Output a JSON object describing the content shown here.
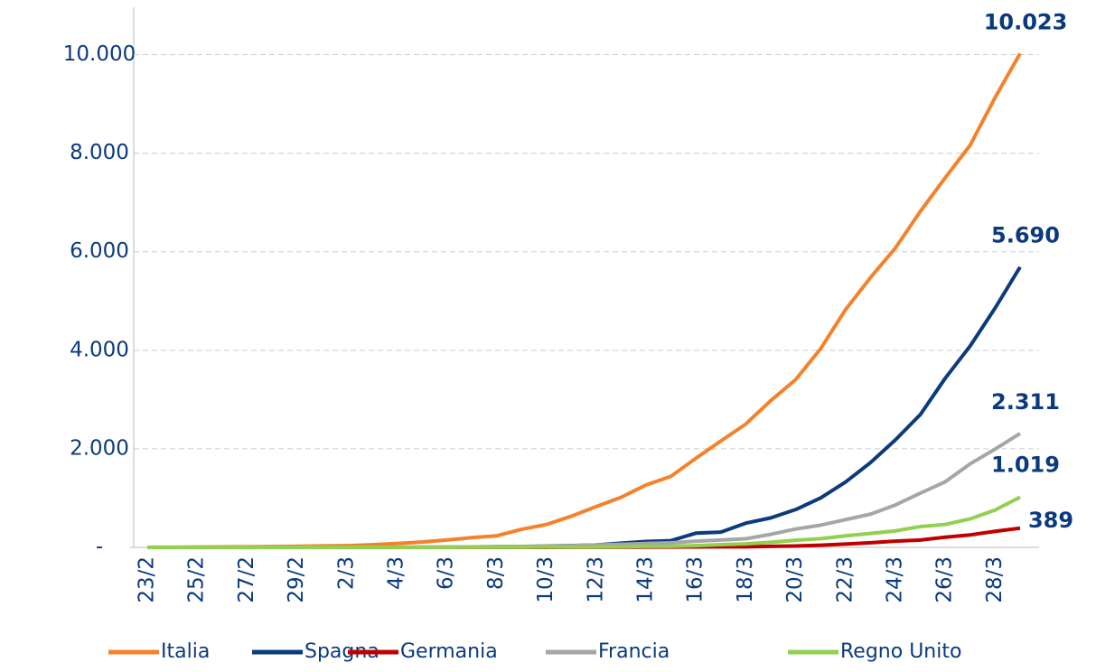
{
  "chart_data": {
    "type": "line",
    "categories": [
      "23/2",
      null,
      "25/2",
      null,
      "27/2",
      null,
      "29/2",
      null,
      "2/3",
      null,
      "4/3",
      null,
      "6/3",
      null,
      "8/3",
      null,
      "10/3",
      null,
      "12/3",
      null,
      "14/3",
      null,
      "16/3",
      null,
      "18/3",
      null,
      "20/3",
      null,
      "22/3",
      null,
      "24/3",
      null,
      "26/3",
      null,
      "28/3",
      null
    ],
    "series": [
      {
        "name": "Italia",
        "color": "#f5822a",
        "values": [
          2,
          3,
          7,
          10,
          12,
          17,
          21,
          29,
          34,
          52,
          79,
          107,
          148,
          197,
          233,
          366,
          463,
          631,
          827,
          1016,
          1266,
          1441,
          1809,
          2158,
          2503,
          2978,
          3405,
          4032,
          4825,
          5476,
          6077,
          6820,
          7503,
          8165,
          9134,
          10023
        ],
        "value_labels": [
          null,
          null,
          null,
          null,
          null,
          null,
          null,
          null,
          null,
          null,
          null,
          null,
          null,
          null,
          null,
          null,
          null,
          null,
          null,
          null,
          null,
          null,
          null,
          null,
          null,
          null,
          null,
          null,
          null,
          null,
          null,
          null,
          null,
          null,
          null,
          "10.023"
        ]
      },
      {
        "name": "Spagna",
        "color": "#0b3a7e",
        "values": [
          0,
          0,
          0,
          0,
          0,
          0,
          0,
          0,
          0,
          0,
          1,
          2,
          3,
          5,
          8,
          10,
          28,
          35,
          48,
          84,
          120,
          136,
          288,
          309,
          491,
          598,
          767,
          1002,
          1326,
          1720,
          2182,
          2696,
          3434,
          4089,
          4858,
          5690
        ],
        "value_labels": [
          null,
          null,
          null,
          null,
          null,
          null,
          null,
          null,
          null,
          null,
          null,
          null,
          null,
          null,
          null,
          null,
          null,
          null,
          null,
          null,
          null,
          null,
          null,
          null,
          null,
          null,
          null,
          null,
          null,
          null,
          null,
          null,
          null,
          null,
          null,
          "5.690"
        ]
      },
      {
        "name": "Germania",
        "color": "#c00000",
        "values": [
          0,
          0,
          0,
          0,
          0,
          0,
          0,
          0,
          0,
          0,
          0,
          0,
          0,
          0,
          0,
          0,
          0,
          2,
          2,
          3,
          6,
          8,
          9,
          12,
          12,
          20,
          28,
          44,
          67,
          94,
          126,
          149,
          206,
          253,
          325,
          389
        ],
        "value_labels": [
          null,
          null,
          null,
          null,
          null,
          null,
          null,
          null,
          null,
          null,
          null,
          null,
          null,
          null,
          null,
          null,
          null,
          null,
          null,
          null,
          null,
          null,
          null,
          null,
          null,
          null,
          null,
          null,
          null,
          null,
          null,
          null,
          null,
          null,
          null,
          "389"
        ]
      },
      {
        "name": "Francia",
        "color": "#a6a6a6",
        "values": [
          1,
          1,
          1,
          1,
          1,
          1,
          1,
          1,
          2,
          3,
          4,
          4,
          7,
          9,
          19,
          19,
          30,
          33,
          48,
          61,
          79,
          91,
          127,
          148,
          175,
          264,
          372,
          450,
          562,
          674,
          860,
          1100,
          1331,
          1696,
          1995,
          2311
        ],
        "value_labels": [
          null,
          null,
          null,
          null,
          null,
          null,
          null,
          null,
          null,
          null,
          null,
          null,
          null,
          null,
          null,
          null,
          null,
          null,
          null,
          null,
          null,
          null,
          null,
          null,
          null,
          null,
          null,
          null,
          null,
          null,
          null,
          null,
          null,
          null,
          null,
          "2.311"
        ]
      },
      {
        "name": "Regno Unito",
        "color": "#92d050",
        "values": [
          0,
          0,
          0,
          0,
          0,
          0,
          0,
          0,
          0,
          0,
          0,
          0,
          1,
          2,
          2,
          3,
          6,
          8,
          8,
          10,
          21,
          21,
          35,
          56,
          71,
          104,
          144,
          177,
          233,
          281,
          335,
          422,
          465,
          578,
          759,
          1019
        ],
        "value_labels": [
          null,
          null,
          null,
          null,
          null,
          null,
          null,
          null,
          null,
          null,
          null,
          null,
          null,
          null,
          null,
          null,
          null,
          null,
          null,
          null,
          null,
          null,
          null,
          null,
          null,
          null,
          null,
          null,
          null,
          null,
          null,
          null,
          null,
          null,
          null,
          "1.019"
        ]
      }
    ],
    "ylim": [
      0,
      11000
    ],
    "yticks": [
      {
        "value": 0,
        "label": "-"
      },
      {
        "value": 2000,
        "label": "2.000"
      },
      {
        "value": 4000,
        "label": "4.000"
      },
      {
        "value": 6000,
        "label": "6.000"
      },
      {
        "value": 8000,
        "label": "8.000"
      },
      {
        "value": 10000,
        "label": "10.000"
      }
    ],
    "grid": true,
    "legend": "bottom"
  }
}
